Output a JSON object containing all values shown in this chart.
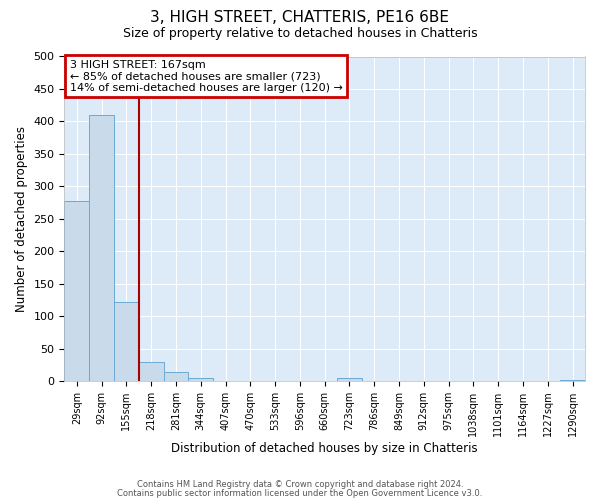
{
  "title": "3, HIGH STREET, CHATTERIS, PE16 6BE",
  "subtitle": "Size of property relative to detached houses in Chatteris",
  "xlabel": "Distribution of detached houses by size in Chatteris",
  "ylabel": "Number of detached properties",
  "bar_labels": [
    "29sqm",
    "92sqm",
    "155sqm",
    "218sqm",
    "281sqm",
    "344sqm",
    "407sqm",
    "470sqm",
    "533sqm",
    "596sqm",
    "660sqm",
    "723sqm",
    "786sqm",
    "849sqm",
    "912sqm",
    "975sqm",
    "1038sqm",
    "1101sqm",
    "1164sqm",
    "1227sqm",
    "1290sqm"
  ],
  "bar_values": [
    277,
    410,
    122,
    29,
    14,
    5,
    0,
    0,
    0,
    0,
    0,
    5,
    0,
    0,
    0,
    0,
    0,
    0,
    0,
    0,
    2
  ],
  "bar_color": "#c9daea",
  "bar_edge_color": "#6aaad4",
  "vline_color": "#aa0000",
  "annotation_title": "3 HIGH STREET: 167sqm",
  "annotation_line1": "← 85% of detached houses are smaller (723)",
  "annotation_line2": "14% of semi-detached houses are larger (120) →",
  "annotation_box_color": "#cc0000",
  "ylim": [
    0,
    500
  ],
  "yticks": [
    0,
    50,
    100,
    150,
    200,
    250,
    300,
    350,
    400,
    450,
    500
  ],
  "footer1": "Contains HM Land Registry data © Crown copyright and database right 2024.",
  "footer2": "Contains public sector information licensed under the Open Government Licence v3.0.",
  "fig_bg_color": "#ffffff",
  "plot_bg_color": "#ddeaf7",
  "figsize": [
    6.0,
    5.0
  ],
  "dpi": 100
}
